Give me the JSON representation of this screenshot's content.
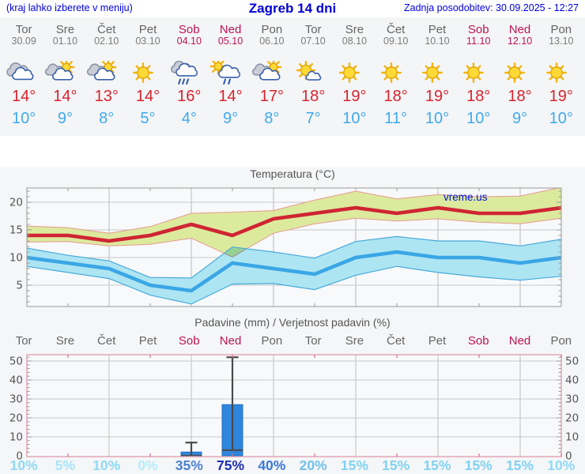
{
  "header": {
    "note": "(kraj lahko izberete v meniju)",
    "title": "Zagreb 14 dni",
    "updated": "Zadnja posodobitev: 30.09.2025 - 12:27"
  },
  "days": [
    {
      "name": "Tor",
      "date": "30.09",
      "weekend": false,
      "icon": "cloudy",
      "tmax": "14°",
      "tmin": "10°",
      "pop": "10%",
      "pop_color": "#8ed9f6"
    },
    {
      "name": "Sre",
      "date": "01.10",
      "weekend": false,
      "icon": "sun-cloud",
      "tmax": "14°",
      "tmin": "9°",
      "pop": "5%",
      "pop_color": "#a6e5fa"
    },
    {
      "name": "Čet",
      "date": "02.10",
      "weekend": false,
      "icon": "sun-cloud",
      "tmax": "13°",
      "tmin": "8°",
      "pop": "10%",
      "pop_color": "#8ed9f6"
    },
    {
      "name": "Pet",
      "date": "03.10",
      "weekend": false,
      "icon": "sun",
      "tmax": "14°",
      "tmin": "5°",
      "pop": "0%",
      "pop_color": "#b5ecfc"
    },
    {
      "name": "Sob",
      "date": "04.10",
      "weekend": true,
      "icon": "rain",
      "tmax": "16°",
      "tmin": "4°",
      "pop": "35%",
      "pop_color": "#4a80d2"
    },
    {
      "name": "Ned",
      "date": "05.10",
      "weekend": true,
      "icon": "sun-rain",
      "tmax": "14°",
      "tmin": "9°",
      "pop": "75%",
      "pop_color": "#1b2cb4"
    },
    {
      "name": "Pon",
      "date": "06.10",
      "weekend": false,
      "icon": "sun-cloud",
      "tmax": "17°",
      "tmin": "8°",
      "pop": "40%",
      "pop_color": "#3c78da"
    },
    {
      "name": "Tor",
      "date": "07.10",
      "weekend": false,
      "icon": "sun-small-cloud",
      "tmax": "18°",
      "tmin": "7°",
      "pop": "20%",
      "pop_color": "#70c1ee"
    },
    {
      "name": "Sre",
      "date": "08.10",
      "weekend": false,
      "icon": "sun",
      "tmax": "19°",
      "tmin": "10°",
      "pop": "15%",
      "pop_color": "#7fd2f3"
    },
    {
      "name": "Čet",
      "date": "09.10",
      "weekend": false,
      "icon": "sun",
      "tmax": "18°",
      "tmin": "11°",
      "pop": "15%",
      "pop_color": "#7fd2f3"
    },
    {
      "name": "Pet",
      "date": "10.10",
      "weekend": false,
      "icon": "sun",
      "tmax": "19°",
      "tmin": "10°",
      "pop": "15%",
      "pop_color": "#7fd2f3"
    },
    {
      "name": "Sob",
      "date": "11.10",
      "weekend": true,
      "icon": "sun",
      "tmax": "18°",
      "tmin": "10°",
      "pop": "15%",
      "pop_color": "#7fd2f3"
    },
    {
      "name": "Ned",
      "date": "12.10",
      "weekend": true,
      "icon": "sun",
      "tmax": "18°",
      "tmin": "9°",
      "pop": "15%",
      "pop_color": "#7fd2f3"
    },
    {
      "name": "Pon",
      "date": "13.10",
      "weekend": false,
      "icon": "sun",
      "tmax": "19°",
      "tmin": "10°",
      "pop": "10%",
      "pop_color": "#8ed9f6"
    }
  ],
  "chart_data": [
    {
      "type": "line",
      "title": "Temperatura (°C)",
      "watermark": "vreme.us",
      "categories": [
        "Tor",
        "Sre",
        "Čet",
        "Pet",
        "Sob",
        "Ned",
        "Pon",
        "Tor",
        "Sre",
        "Čet",
        "Pet",
        "Sob",
        "Ned",
        "Pon"
      ],
      "yticks": [
        5,
        10,
        15,
        20
      ],
      "ylim": [
        1,
        23
      ],
      "grid": true,
      "series": [
        {
          "name": "max_temp",
          "values": [
            14,
            14,
            13,
            14,
            16,
            14,
            17,
            18,
            19,
            18,
            19,
            18,
            18,
            19
          ],
          "color": "#cf2533"
        },
        {
          "name": "max_range_upper",
          "values": [
            15.7,
            15.4,
            14.4,
            15.6,
            18,
            18.2,
            18.5,
            20.4,
            22,
            20.6,
            21.4,
            21,
            21.1,
            22.7
          ],
          "color": "#dcea9e"
        },
        {
          "name": "max_range_lower",
          "values": [
            12.8,
            12.9,
            12.1,
            12.4,
            13.5,
            10.1,
            14.4,
            16.1,
            17.1,
            16.6,
            17,
            16.4,
            16.1,
            17.1
          ],
          "color": "#dcea9e"
        },
        {
          "name": "min_temp",
          "values": [
            10,
            9,
            8,
            5,
            4,
            9,
            8,
            7,
            10,
            11,
            10,
            10,
            9,
            10
          ],
          "color": "#3aa6e6"
        },
        {
          "name": "min_range_upper",
          "values": [
            11.7,
            10.4,
            9.4,
            6.4,
            6.3,
            11.9,
            11,
            9.9,
            12.9,
            13.8,
            13,
            13,
            12.1,
            13.3
          ],
          "color": "#aee5f2"
        },
        {
          "name": "min_range_lower",
          "values": [
            8.4,
            7.3,
            6.2,
            3.2,
            1.6,
            5.2,
            5.3,
            4.2,
            6.8,
            8.4,
            7.3,
            6.5,
            5.9,
            6.6
          ],
          "color": "#aee5f2"
        }
      ]
    },
    {
      "type": "bar",
      "title": "Padavine (mm) / Verjetnost padavin (%)",
      "categories": [
        "Tor",
        "Sre",
        "Čet",
        "Pet",
        "Sob",
        "Ned",
        "Pon",
        "Tor",
        "Sre",
        "Čet",
        "Pet",
        "Sob",
        "Ned",
        "Pon"
      ],
      "yticks": [
        0,
        10,
        20,
        30,
        40,
        50
      ],
      "ylim": [
        0,
        53
      ],
      "grid": true,
      "bars": [
        {
          "day_index": 4,
          "label": "Sob",
          "value_mm": 2,
          "range_mm": [
            0,
            7
          ]
        },
        {
          "day_index": 5,
          "label": "Ned",
          "value_mm": 27,
          "range_mm": [
            3,
            52
          ]
        }
      ],
      "pop_percent": [
        10,
        5,
        10,
        0,
        35,
        75,
        40,
        20,
        15,
        15,
        15,
        15,
        15,
        10
      ],
      "bar_color": "#2e86dd"
    }
  ],
  "colors": {
    "header_blue": "#0000e0",
    "weekend": "#bc1356",
    "weekday": "#666666",
    "tmax_red": "#d9232e",
    "tmin_blue": "#3fa9ec",
    "max_band": "#dcea9e",
    "min_band": "#aee5f2",
    "bar_blue": "#2e86dd",
    "precip_border_pink": "#e2a0b4"
  }
}
